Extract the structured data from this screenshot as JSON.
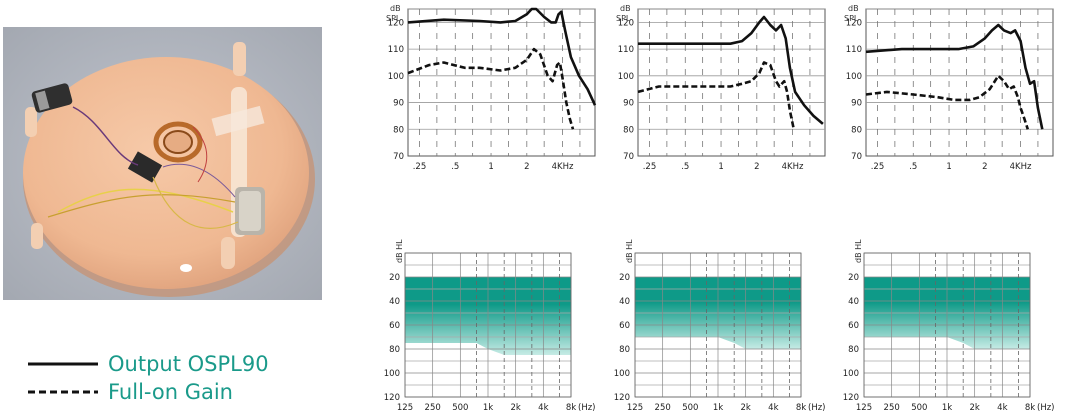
{
  "legend": {
    "solid_label": "Output OSPL90",
    "dashed_label": "Full-on Gain"
  },
  "colors": {
    "legend_text": "#1a9a8a",
    "audiogram_fill_top": "#0e9a88",
    "audiogram_fill_bottom": "#c6ebe5",
    "curve": "#111111"
  },
  "photo": {
    "icon": "hearing-aid-prototype-photo-icon"
  },
  "chart_data": [
    {
      "type": "line",
      "chart": "ospl90-1",
      "ylabel_line1": "dB",
      "ylabel_line2": "SPL",
      "ylim": [
        70,
        125
      ],
      "yticks": [
        70,
        80,
        90,
        100,
        110,
        120
      ],
      "xlim": [
        0.2,
        7.5
      ],
      "xscale": "log",
      "xticks": [
        {
          "v": 0.25,
          "label": ".25"
        },
        {
          "v": 0.5,
          "label": ".5"
        },
        {
          "v": 1,
          "label": "1"
        },
        {
          "v": 2,
          "label": "2"
        },
        {
          "v": 4,
          "label": "4KHz"
        }
      ],
      "grid": true,
      "series": [
        {
          "style": "solid",
          "x": [
            0.2,
            0.4,
            0.8,
            1.2,
            1.6,
            2.0,
            2.2,
            2.4,
            2.8,
            3.2,
            3.5,
            3.7,
            3.9,
            4.2,
            4.7,
            5.5,
            6.5,
            7.5
          ],
          "y": [
            120,
            121,
            120.5,
            120,
            120.5,
            123,
            125,
            125,
            122,
            120,
            120,
            123,
            124,
            117,
            107,
            100,
            95,
            89
          ]
        },
        {
          "style": "dashed",
          "x": [
            0.2,
            0.3,
            0.4,
            0.6,
            0.8,
            1.2,
            1.6,
            2.0,
            2.3,
            2.6,
            3.0,
            3.3,
            3.6,
            3.8,
            4.0,
            4.3,
            4.6,
            4.9
          ],
          "y": [
            101,
            104,
            105,
            103,
            103,
            102,
            103,
            106,
            110,
            108,
            100,
            98,
            104,
            105,
            99,
            90,
            84,
            80
          ]
        }
      ]
    },
    {
      "type": "line",
      "chart": "ospl90-2",
      "ylabel_line1": "dB",
      "ylabel_line2": "SPL",
      "ylim": [
        70,
        125
      ],
      "yticks": [
        70,
        80,
        90,
        100,
        110,
        120
      ],
      "xlim": [
        0.2,
        7.5
      ],
      "xscale": "log",
      "xticks": [
        {
          "v": 0.25,
          "label": ".25"
        },
        {
          "v": 0.5,
          "label": ".5"
        },
        {
          "v": 1,
          "label": "1"
        },
        {
          "v": 2,
          "label": "2"
        },
        {
          "v": 4,
          "label": "4KHz"
        }
      ],
      "grid": true,
      "series": [
        {
          "style": "solid",
          "x": [
            0.2,
            0.4,
            0.8,
            1.2,
            1.5,
            1.8,
            2.1,
            2.3,
            2.6,
            2.9,
            3.2,
            3.5,
            3.8,
            4.2,
            5.0,
            6.0,
            7.2
          ],
          "y": [
            112,
            112,
            112,
            112,
            113,
            116,
            120,
            122,
            119,
            117,
            119,
            114,
            103,
            94,
            89,
            85,
            82
          ]
        },
        {
          "style": "dashed",
          "x": [
            0.2,
            0.3,
            0.5,
            0.8,
            1.2,
            1.5,
            1.8,
            2.1,
            2.3,
            2.6,
            2.9,
            3.1,
            3.4,
            3.6,
            3.8,
            4.1
          ],
          "y": [
            94,
            96,
            96,
            96,
            96,
            97,
            98,
            101,
            105,
            104,
            98,
            96,
            98,
            94,
            87,
            80
          ]
        }
      ]
    },
    {
      "type": "line",
      "chart": "ospl90-3",
      "ylabel_line1": "dB",
      "ylabel_line2": "SPL",
      "ylim": [
        70,
        125
      ],
      "yticks": [
        70,
        80,
        90,
        100,
        110,
        120
      ],
      "xlim": [
        0.2,
        7.5
      ],
      "xscale": "log",
      "xticks": [
        {
          "v": 0.25,
          "label": ".25"
        },
        {
          "v": 0.5,
          "label": ".5"
        },
        {
          "v": 1,
          "label": "1"
        },
        {
          "v": 2,
          "label": "2"
        },
        {
          "v": 4,
          "label": "4KHz"
        }
      ],
      "grid": true,
      "series": [
        {
          "style": "solid",
          "x": [
            0.2,
            0.4,
            0.8,
            1.2,
            1.6,
            2.0,
            2.3,
            2.6,
            2.9,
            3.3,
            3.6,
            4.0,
            4.4,
            4.8,
            5.2,
            5.6,
            6.1
          ],
          "y": [
            109,
            110,
            110,
            110,
            111,
            114,
            117,
            119,
            117,
            116,
            117,
            113,
            103,
            97,
            98,
            88,
            80
          ]
        },
        {
          "style": "dashed",
          "x": [
            0.2,
            0.3,
            0.5,
            0.8,
            1.1,
            1.5,
            1.8,
            2.2,
            2.6,
            2.9,
            3.2,
            3.5,
            3.8,
            4.0,
            4.3,
            4.6
          ],
          "y": [
            93,
            94,
            93,
            92,
            91,
            91,
            92,
            95,
            100,
            98,
            95,
            96,
            92,
            88,
            84,
            80
          ]
        }
      ]
    },
    {
      "type": "area",
      "chart": "audiogram-1",
      "ylabel": "dB HL",
      "ylim": [
        0,
        120
      ],
      "yinverted": true,
      "yticks": [
        20,
        40,
        60,
        80,
        100,
        120
      ],
      "xscale": "log",
      "xticks": [
        {
          "v": 125,
          "label": "125"
        },
        {
          "v": 250,
          "label": "250"
        },
        {
          "v": 500,
          "label": "500"
        },
        {
          "v": 1000,
          "label": "1k"
        },
        {
          "v": 2000,
          "label": "2k"
        },
        {
          "v": 4000,
          "label": "4k"
        },
        {
          "v": 8000,
          "label": "8k"
        }
      ],
      "xunit": "(Hz)",
      "grid": true,
      "fitting_range": {
        "top": 20,
        "x": [
          125,
          250,
          500,
          750,
          1000,
          1500,
          2000,
          3000,
          4000,
          6000,
          8000
        ],
        "bottom": [
          75,
          75,
          75,
          75,
          80,
          85,
          85,
          85,
          85,
          85,
          85
        ]
      }
    },
    {
      "type": "area",
      "chart": "audiogram-2",
      "ylabel": "dB HL",
      "ylim": [
        0,
        120
      ],
      "yinverted": true,
      "yticks": [
        20,
        40,
        60,
        80,
        100,
        120
      ],
      "xscale": "log",
      "xticks": [
        {
          "v": 125,
          "label": "125"
        },
        {
          "v": 250,
          "label": "250"
        },
        {
          "v": 500,
          "label": "500"
        },
        {
          "v": 1000,
          "label": "1k"
        },
        {
          "v": 2000,
          "label": "2k"
        },
        {
          "v": 4000,
          "label": "4k"
        },
        {
          "v": 8000,
          "label": "8k"
        }
      ],
      "xunit": "(Hz)",
      "grid": true,
      "fitting_range": {
        "top": 20,
        "x": [
          125,
          250,
          500,
          750,
          1000,
          1500,
          2000,
          3000,
          4000,
          6000,
          8000
        ],
        "bottom": [
          70,
          70,
          70,
          70,
          70,
          75,
          80,
          80,
          80,
          80,
          80
        ]
      }
    },
    {
      "type": "area",
      "chart": "audiogram-3",
      "ylabel": "dB HL",
      "ylim": [
        0,
        120
      ],
      "yinverted": true,
      "yticks": [
        20,
        40,
        60,
        80,
        100,
        120
      ],
      "xscale": "log",
      "xticks": [
        {
          "v": 125,
          "label": "125"
        },
        {
          "v": 250,
          "label": "250"
        },
        {
          "v": 500,
          "label": "500"
        },
        {
          "v": 1000,
          "label": "1k"
        },
        {
          "v": 2000,
          "label": "2k"
        },
        {
          "v": 4000,
          "label": "4k"
        },
        {
          "v": 8000,
          "label": "8k"
        }
      ],
      "xunit": "(Hz)",
      "grid": true,
      "fitting_range": {
        "top": 20,
        "x": [
          125,
          250,
          500,
          750,
          1000,
          1500,
          2000,
          3000,
          4000,
          6000,
          8000
        ],
        "bottom": [
          70,
          70,
          70,
          70,
          70,
          75,
          80,
          80,
          80,
          80,
          80
        ]
      }
    }
  ]
}
